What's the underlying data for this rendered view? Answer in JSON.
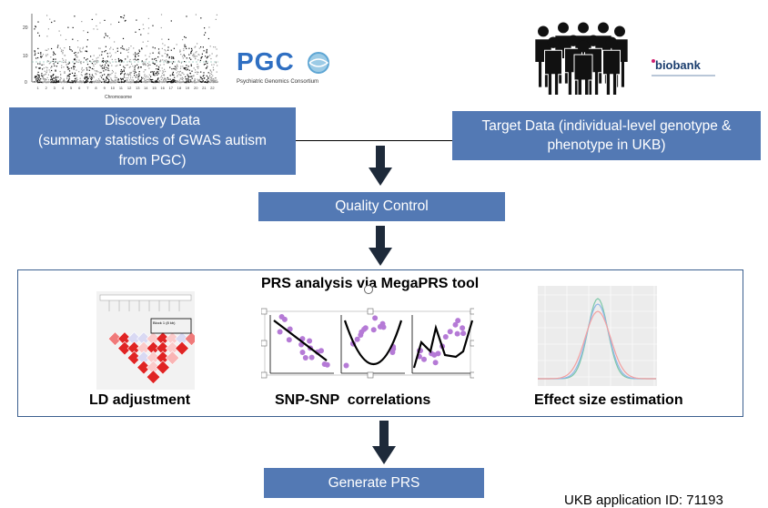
{
  "header": {
    "pgc_logo_text": "PGC",
    "pgc_subtitle": "Psychiatric Genomics Consortium",
    "biobank_logo_text": "biobank",
    "manhattan_xlabel": "Chromosome",
    "manhattan_ticks_y": [
      "20",
      "10",
      "0"
    ],
    "manhattan_ticks_x": [
      "1",
      "2",
      "3",
      "4",
      "5",
      "6",
      "7",
      "8",
      "9",
      "10",
      "11",
      "12",
      "13",
      "14",
      "15",
      "16",
      "17",
      "18",
      "19",
      "20",
      "21",
      "22"
    ]
  },
  "discovery": {
    "line1": "Discovery Data",
    "line2": "(summary statistics of GWAS autism",
    "line3": "from PGC)"
  },
  "target": {
    "line1": "Target Data (individual-level genotype &",
    "line2": "phenotype in UKB)"
  },
  "quality_control": {
    "label": "Quality Control"
  },
  "prs_panel": {
    "title": "PRS analysis via MegaPRS tool",
    "ld_caption": "LD adjustment",
    "snp_caption": "SNP-SNP  correlations",
    "effect_caption": "Effect size estimation",
    "ld_block_label": "Block 1 (8 kb)"
  },
  "generate": {
    "label": "Generate PRS"
  },
  "footer": {
    "ukb_text": "UKB application ID: 71193"
  },
  "colors": {
    "box_blue": "#5379b4",
    "arrow_dark": "#1e2a3a",
    "panel_border": "#3b5f8f",
    "ld_red": "#e02424",
    "scatter_purple": "#b57ad6"
  }
}
